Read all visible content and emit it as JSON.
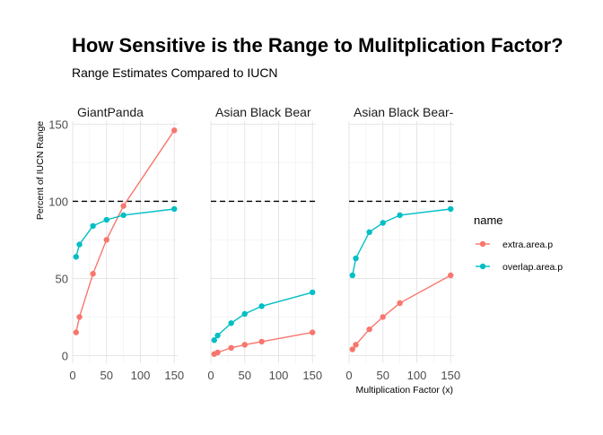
{
  "chart_data": {
    "type": "line",
    "title": "How Sensitive is the Range to Mulitplication Factor?",
    "subtitle": "Range Estimates Compared to IUCN",
    "xlabel": "Multiplication Factor (x)",
    "ylabel": "Percent of IUCN Range",
    "xlim": [
      0,
      155
    ],
    "ylim": [
      -5,
      152
    ],
    "x_ticks": [
      0,
      50,
      100,
      150
    ],
    "y_ticks": [
      0,
      50,
      100,
      150
    ],
    "reference_line": {
      "y": 100,
      "style": "dashed"
    },
    "legend": {
      "title": "name",
      "position": "right"
    },
    "grid": true,
    "series_styles": [
      {
        "name": "extra.area.p",
        "color": "#F8766D"
      },
      {
        "name": "overlap.area.p",
        "color": "#00BFC4"
      }
    ],
    "panels": [
      {
        "strip": "GiantPanda",
        "x": [
          5,
          10,
          30,
          50,
          75,
          150
        ],
        "series": [
          {
            "name": "extra.area.p",
            "values": [
              15,
              25,
              53,
              75,
              97,
              146
            ]
          },
          {
            "name": "overlap.area.p",
            "values": [
              64,
              72,
              84,
              88,
              91,
              95
            ]
          }
        ]
      },
      {
        "strip": "Asian Black Bear",
        "x": [
          5,
          10,
          30,
          50,
          75,
          150
        ],
        "series": [
          {
            "name": "extra.area.p",
            "values": [
              1,
              2,
              5,
              7,
              9,
              15
            ]
          },
          {
            "name": "overlap.area.p",
            "values": [
              10,
              13,
              21,
              27,
              32,
              41
            ]
          }
        ]
      },
      {
        "strip": "Asian Black Bear-S",
        "x": [
          5,
          10,
          30,
          50,
          75,
          150
        ],
        "series": [
          {
            "name": "extra.area.p",
            "values": [
              4,
              7,
              17,
              25,
              34,
              52
            ]
          },
          {
            "name": "overlap.area.p",
            "values": [
              52,
              63,
              80,
              86,
              91,
              95
            ]
          }
        ]
      }
    ]
  }
}
